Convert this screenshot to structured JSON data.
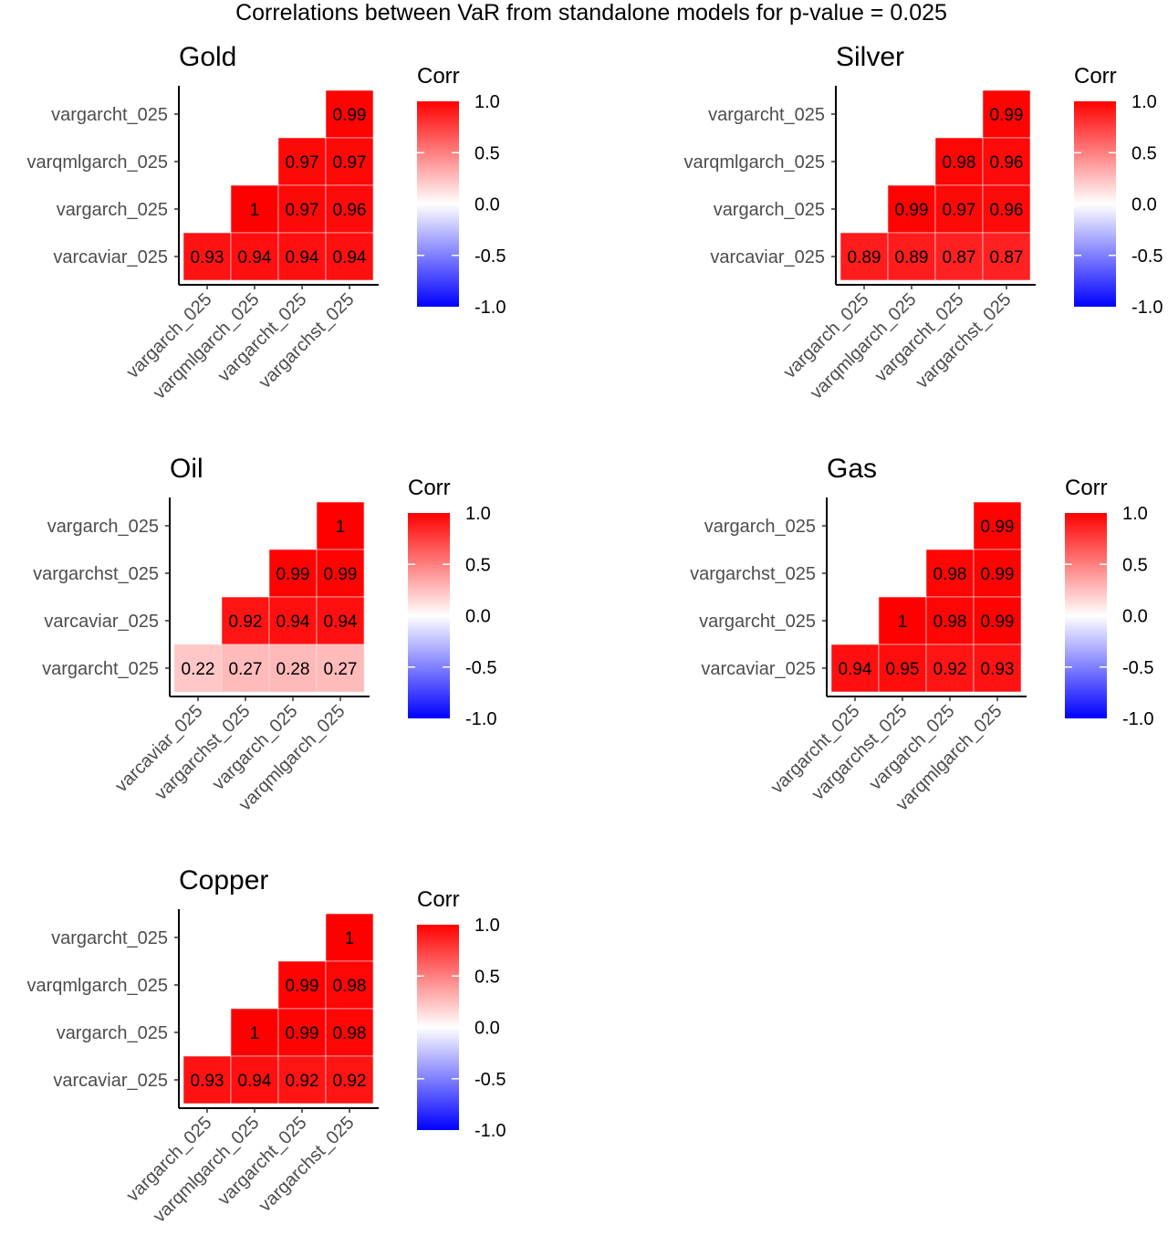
{
  "title": "Correlations between VaR from standalone models for p-value = 0.025",
  "colors": {
    "low": "#0000FF",
    "mid": "#FFFFFF",
    "high": "#FF0000",
    "cell_border": "#E6E6E6"
  },
  "chart_data": [
    {
      "type": "heatmap",
      "title": "Gold",
      "legend_title": "Corr",
      "legend_ticks": [
        "1.0",
        "0.5",
        "0.0",
        "-0.5",
        "-1.0"
      ],
      "color_range": [
        -1,
        1
      ],
      "rows": [
        "vargarcht_025",
        "varqmlgarch_025",
        "vargarch_025",
        "varcaviar_025"
      ],
      "columns": [
        "vargarch_025",
        "varqmlgarch_025",
        "vargarcht_025",
        "vargarchst_025"
      ],
      "values": [
        [
          null,
          null,
          null,
          0.99
        ],
        [
          null,
          null,
          0.97,
          0.97
        ],
        [
          null,
          1,
          0.97,
          0.96
        ],
        [
          0.93,
          0.94,
          0.94,
          0.94
        ]
      ]
    },
    {
      "type": "heatmap",
      "title": "Silver",
      "legend_title": "Corr",
      "legend_ticks": [
        "1.0",
        "0.5",
        "0.0",
        "-0.5",
        "-1.0"
      ],
      "color_range": [
        -1,
        1
      ],
      "rows": [
        "vargarcht_025",
        "varqmlgarch_025",
        "vargarch_025",
        "varcaviar_025"
      ],
      "columns": [
        "vargarch_025",
        "varqmlgarch_025",
        "vargarcht_025",
        "vargarchst_025"
      ],
      "values": [
        [
          null,
          null,
          null,
          0.99
        ],
        [
          null,
          null,
          0.98,
          0.96
        ],
        [
          null,
          0.99,
          0.97,
          0.96
        ],
        [
          0.89,
          0.89,
          0.87,
          0.87
        ]
      ]
    },
    {
      "type": "heatmap",
      "title": "Oil",
      "legend_title": "Corr",
      "legend_ticks": [
        "1.0",
        "0.5",
        "0.0",
        "-0.5",
        "-1.0"
      ],
      "color_range": [
        -1,
        1
      ],
      "rows": [
        "vargarch_025",
        "vargarchst_025",
        "varcaviar_025",
        "vargarcht_025"
      ],
      "columns": [
        "varcaviar_025",
        "vargarchst_025",
        "vargarch_025",
        "varqmlgarch_025"
      ],
      "values": [
        [
          null,
          null,
          null,
          1
        ],
        [
          null,
          null,
          0.99,
          0.99
        ],
        [
          null,
          0.92,
          0.94,
          0.94
        ],
        [
          0.22,
          0.27,
          0.28,
          0.27
        ]
      ]
    },
    {
      "type": "heatmap",
      "title": "Gas",
      "legend_title": "Corr",
      "legend_ticks": [
        "1.0",
        "0.5",
        "0.0",
        "-0.5",
        "-1.0"
      ],
      "color_range": [
        -1,
        1
      ],
      "rows": [
        "vargarch_025",
        "vargarchst_025",
        "vargarcht_025",
        "varcaviar_025"
      ],
      "columns": [
        "vargarcht_025",
        "vargarchst_025",
        "vargarch_025",
        "varqmlgarch_025"
      ],
      "values": [
        [
          null,
          null,
          null,
          0.99
        ],
        [
          null,
          null,
          0.98,
          0.99
        ],
        [
          null,
          1,
          0.98,
          0.99
        ],
        [
          0.94,
          0.95,
          0.92,
          0.93
        ]
      ]
    },
    {
      "type": "heatmap",
      "title": "Copper",
      "legend_title": "Corr",
      "legend_ticks": [
        "1.0",
        "0.5",
        "0.0",
        "-0.5",
        "-1.0"
      ],
      "color_range": [
        -1,
        1
      ],
      "rows": [
        "vargarcht_025",
        "varqmlgarch_025",
        "vargarch_025",
        "varcaviar_025"
      ],
      "columns": [
        "vargarch_025",
        "varqmlgarch_025",
        "vargarcht_025",
        "vargarchst_025"
      ],
      "values": [
        [
          null,
          null,
          null,
          1
        ],
        [
          null,
          null,
          0.99,
          0.98
        ],
        [
          null,
          1,
          0.99,
          0.98
        ],
        [
          0.93,
          0.94,
          0.92,
          0.92
        ]
      ]
    }
  ]
}
